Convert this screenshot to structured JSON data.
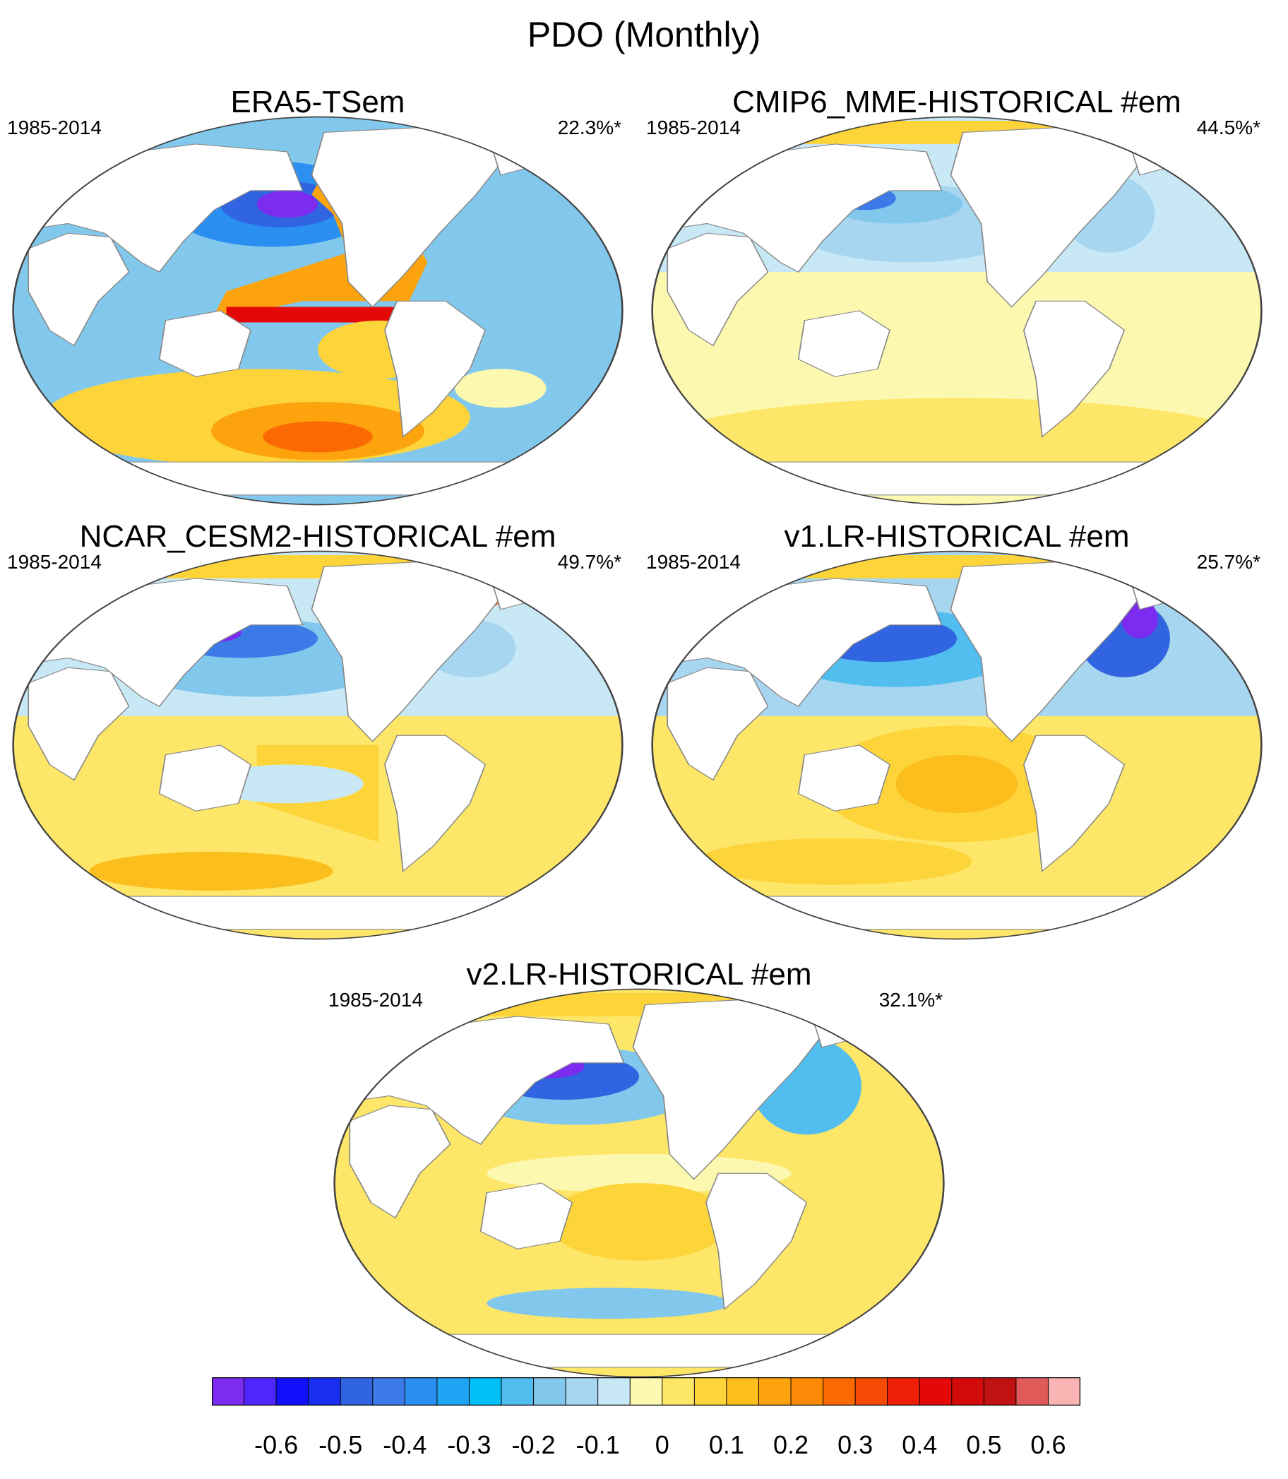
{
  "figure_title": "PDO (Monthly)",
  "chart_data": [
    {
      "type": "heatmap",
      "title": "ERA5-TSem",
      "period": "1985-2014",
      "variance_explained": "22.3%*",
      "pattern": "era5"
    },
    {
      "type": "heatmap",
      "title": "CMIP6_MME-HISTORICAL  #em",
      "period": "1985-2014",
      "variance_explained": "44.5%*",
      "pattern": "mme"
    },
    {
      "type": "heatmap",
      "title": "NCAR_CESM2-HISTORICAL  #em",
      "period": "1985-2014",
      "variance_explained": "49.7%*",
      "pattern": "cesm2"
    },
    {
      "type": "heatmap",
      "title": "v1.LR-HISTORICAL  #em",
      "period": "1985-2014",
      "variance_explained": "25.7%*",
      "pattern": "v1"
    },
    {
      "type": "heatmap",
      "title": "v2.LR-HISTORICAL  #em",
      "period": "1985-2014",
      "variance_explained": "32.1%*",
      "pattern": "v2"
    }
  ],
  "colorbar": {
    "colors": [
      "#7c2bf0",
      "#5026ff",
      "#1010ff",
      "#1a2ef0",
      "#3064e0",
      "#3c7ae8",
      "#2a8ff0",
      "#1ea6f5",
      "#00bff8",
      "#52bef0",
      "#82c8ec",
      "#a6d6f0",
      "#c8e8f6",
      "#fdf8b0",
      "#fde668",
      "#fdd43a",
      "#fcbe1c",
      "#fca30e",
      "#fc8a06",
      "#fb6a02",
      "#f54a04",
      "#ef1f06",
      "#e40808",
      "#d20a0a",
      "#c01210",
      "#e05a5a",
      "#fbb4b4"
    ],
    "tick_labels": [
      "-0.6",
      "-0.5",
      "-0.4",
      "-0.3",
      "-0.2",
      "-0.1",
      "0",
      "0.1",
      "0.2",
      "0.3",
      "0.4",
      "0.5",
      "0.6"
    ]
  }
}
